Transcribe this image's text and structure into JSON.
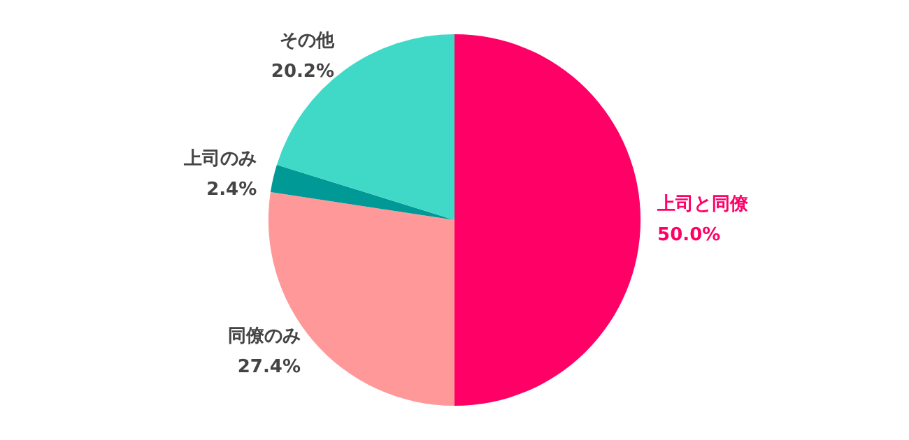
{
  "chart_data": {
    "type": "pie",
    "categories": [
      "上司と同僚",
      "同僚のみ",
      "上司のみ",
      "その他"
    ],
    "values": [
      50.0,
      27.4,
      2.4,
      20.2
    ],
    "value_labels": [
      "50.0%",
      "27.4%",
      "2.4%",
      "20.2%"
    ],
    "colors": [
      "#ff0066",
      "#ff9999",
      "#009995",
      "#40d9c8"
    ],
    "legend": false
  }
}
